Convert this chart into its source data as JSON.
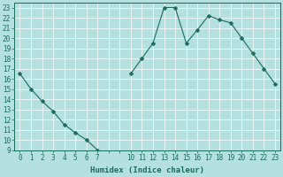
{
  "x_labels": [
    "0",
    "1",
    "2",
    "3",
    "4",
    "5",
    "6",
    "7",
    "",
    "",
    "10",
    "11",
    "12",
    "13",
    "14",
    "15",
    "16",
    "17",
    "18",
    "19",
    "20",
    "21",
    "22",
    "23"
  ],
  "x_indices": [
    0,
    1,
    2,
    3,
    4,
    5,
    6,
    7,
    8,
    9,
    10,
    11,
    12,
    13,
    14,
    15,
    16,
    17,
    18,
    19,
    20,
    21,
    22,
    23
  ],
  "y": [
    16.5,
    15.0,
    13.8,
    12.8,
    11.5,
    10.7,
    10.0,
    9.0,
    null,
    null,
    16.5,
    18.0,
    19.5,
    23.0,
    23.0,
    19.5,
    20.8,
    22.2,
    21.8,
    21.5,
    20.0,
    18.5,
    17.0,
    15.5
  ],
  "segments_x": [
    [
      0,
      1,
      2,
      3,
      4,
      5,
      6,
      7
    ],
    [
      10,
      11,
      12,
      13,
      14,
      15,
      16,
      17,
      18,
      19,
      20,
      21,
      22,
      23
    ]
  ],
  "segments_y": [
    [
      16.5,
      15.0,
      13.8,
      12.8,
      11.5,
      10.7,
      10.0,
      9.0
    ],
    [
      16.5,
      18.0,
      19.5,
      23.0,
      23.0,
      19.5,
      20.8,
      22.2,
      21.8,
      21.5,
      20.0,
      18.5,
      17.0,
      15.5
    ]
  ],
  "line_color": "#1a6b5a",
  "marker": "D",
  "marker_size": 2.5,
  "bg_color": "#b5e0e0",
  "grid_color": "#ffffff",
  "xlabel": "Humidex (Indice chaleur)",
  "ylim": [
    9,
    23.5
  ],
  "yticks": [
    9,
    10,
    11,
    12,
    13,
    14,
    15,
    16,
    17,
    18,
    19,
    20,
    21,
    22,
    23
  ],
  "xlim": [
    -0.5,
    23.5
  ],
  "label_color": "#1a6b5a",
  "xlabel_fontsize": 6.5,
  "tick_fontsize": 5.5
}
